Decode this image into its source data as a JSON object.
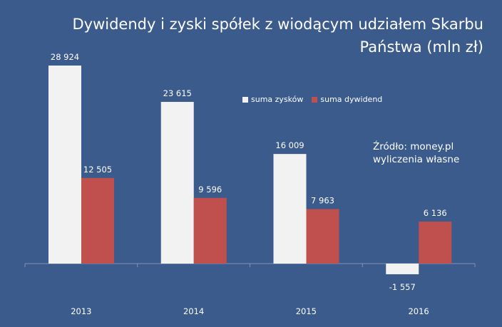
{
  "chart_data": {
    "type": "bar",
    "title_line1": "Dywidendy i zyski spółek z wiodącym udziałem Skarbu",
    "title_line2": "Państwa (mln zł)",
    "categories": [
      "2013",
      "2014",
      "2015",
      "2016"
    ],
    "series": [
      {
        "name": "suma zysków",
        "color": "#f2f2f2",
        "values": [
          28924,
          23615,
          16009,
          -1557
        ],
        "labels": [
          "28 924",
          "23 615",
          "16 009",
          "-1 557"
        ]
      },
      {
        "name": "suma dywidend",
        "color": "#c0504d",
        "values": [
          12505,
          9596,
          7963,
          6136
        ],
        "labels": [
          "12 505",
          "9 596",
          "7 963",
          "6 136"
        ]
      }
    ],
    "source_line1": "Źródło: money.pl",
    "source_line2": "wyliczenia własne",
    "ylim": [
      -3000,
      30000
    ],
    "legend_position": "top-right",
    "grid": false,
    "background_color": "#3b5b8c"
  }
}
